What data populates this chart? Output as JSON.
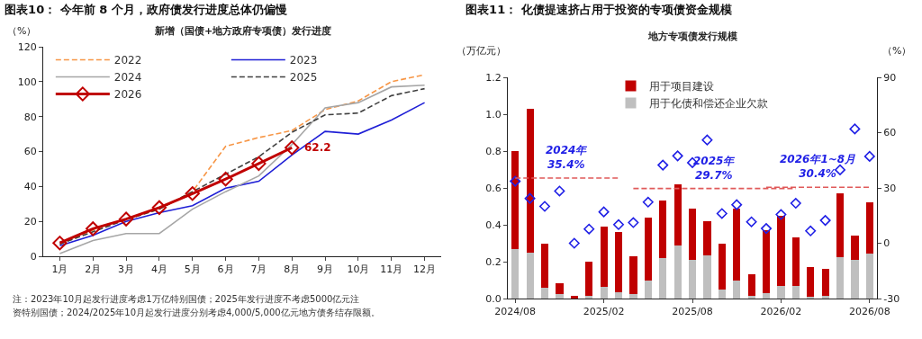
{
  "chart_data": [
    {
      "type": "line",
      "title": "图表10： 今年前 8 个月，政府债发行进度总体仍偏慢",
      "subtitle": "新增（国债+地方政府专项债）发行进度",
      "ylabel": "（%）",
      "categories": [
        "1月",
        "2月",
        "3月",
        "4月",
        "5月",
        "6月",
        "7月",
        "8月",
        "9月",
        "10月",
        "11月",
        "12月"
      ],
      "series": [
        {
          "name": "2022",
          "color": "#f79646",
          "line_style": "dashed",
          "values": [
            7,
            15,
            21,
            27,
            37,
            63,
            68,
            72,
            84,
            89,
            100,
            104
          ]
        },
        {
          "name": "2023",
          "color": "#1f1fd6",
          "line_style": "solid",
          "values": [
            6,
            12,
            20,
            25,
            29,
            39,
            43,
            58,
            71.5,
            70,
            78,
            88
          ]
        },
        {
          "name": "2024",
          "color": "#a6a6a6",
          "line_style": "solid",
          "values": [
            1.5,
            9,
            13,
            13,
            27,
            37,
            46,
            64,
            85,
            88,
            97,
            98
          ]
        },
        {
          "name": "2025",
          "color": "#404040",
          "line_style": "dashed",
          "values": [
            7,
            14,
            21,
            27,
            37,
            47,
            57,
            71,
            81,
            82,
            92,
            96
          ]
        },
        {
          "name": "2026",
          "color": "#c00000",
          "line_style": "solid",
          "marker": "diamond",
          "values": [
            7.6,
            15.8,
            21.3,
            27.9,
            35.9,
            44.2,
            53.1,
            62.2,
            null,
            null,
            null,
            null
          ]
        }
      ],
      "ylim": [
        0,
        120
      ],
      "yticks": [
        0,
        20,
        40,
        60,
        80,
        100,
        120
      ],
      "legend": "top left",
      "annotations": [
        {
          "text": "62.2",
          "x": "8月",
          "y": 62.2
        },
        "注：2023年10月起发行进度考虑1万亿特别国债；2025年发行进度不考虑5000亿元注",
        "资特别国债；2024/2025年10月起发行进度分别考虑4,000/5,000亿元地方债务结存限额。"
      ]
    },
    {
      "type": "bar",
      "stacked": true,
      "title": "图表11： 化债提速挤占用于投资的专项债资金规模",
      "subtitle": "地方专项债发行规模",
      "ylabel": "（万亿元）",
      "y2label": "（%）",
      "categories": [
        "2024/08",
        null,
        null,
        null,
        null,
        null,
        "2025/02",
        null,
        null,
        null,
        null,
        null,
        "2025/08",
        null,
        null,
        null,
        null,
        null,
        "2026/02",
        null,
        null,
        null,
        null,
        null,
        "2026/08"
      ],
      "series": [
        {
          "name": "用于化债和偿还企业欠款",
          "color": "#bfbfbf",
          "values": [
            0.27,
            0.25,
            0.06,
            0.025,
            null,
            0.015,
            0.065,
            0.035,
            0.025,
            0.1,
            0.22,
            0.29,
            0.21,
            0.235,
            0.05,
            0.1,
            0.015,
            0.03,
            0.07,
            0.07,
            0.01,
            0.015,
            0.225,
            0.21,
            0.245
          ]
        },
        {
          "name": "用于项目建设",
          "color": "#c00000",
          "values": [
            0.53,
            0.78,
            0.24,
            0.06,
            0.015,
            0.185,
            0.325,
            0.325,
            0.205,
            0.34,
            0.31,
            0.33,
            0.28,
            0.185,
            0.25,
            0.39,
            0.115,
            0.34,
            0.38,
            0.26,
            0.16,
            0.145,
            0.345,
            0.13,
            0.275
          ]
        },
        {
          "type": "scatter",
          "axis": "y2",
          "color": "#1f1fe6",
          "marker": "diamond",
          "values": [
            33.6,
            24.3,
            20,
            28.3,
            0,
            7.7,
            17,
            10.1,
            11.2,
            22.3,
            42.4,
            47.4,
            43.7,
            56,
            16.1,
            20.9,
            11.6,
            8,
            15.6,
            21.7,
            6.7,
            12.4,
            39.8,
            62,
            47.1
          ]
        },
        {
          "type": "line",
          "axis": "y2",
          "name": "2024年\n35.4%",
          "color": "#e05a5a",
          "line_style": "dashed",
          "values": [
            35.4,
            35.4,
            35.4,
            35.4,
            35.4,
            35.4,
            35.4,
            35.4,
            null,
            null,
            null,
            null,
            null,
            null,
            null,
            null,
            null,
            null,
            null,
            null,
            null,
            null,
            null,
            null,
            null
          ]
        },
        {
          "type": "line",
          "axis": "y2",
          "name": "2025年\n29.7%",
          "color": "#e05a5a",
          "line_style": "dashed",
          "values": [
            null,
            null,
            null,
            null,
            null,
            null,
            null,
            null,
            29.7,
            29.7,
            29.7,
            29.7,
            29.7,
            29.7,
            29.7,
            29.7,
            29.7,
            29.7,
            29.7,
            29.7,
            null,
            null,
            null,
            null,
            null
          ]
        },
        {
          "type": "line",
          "axis": "y2",
          "name": "2026年1~8月\n30.4%",
          "color": "#e05a5a",
          "line_style": "dashed",
          "values": [
            null,
            null,
            null,
            null,
            null,
            null,
            null,
            null,
            null,
            null,
            null,
            null,
            null,
            null,
            null,
            null,
            null,
            30.4,
            30.4,
            30.4,
            30.4,
            30.4,
            30.4,
            30.4,
            30.4
          ]
        }
      ],
      "ylim": [
        0,
        1.2
      ],
      "yticks": [
        {
          "value": 0,
          "label": "0.0"
        },
        0.2,
        0.4,
        0.6,
        0.8,
        {
          "value": 1,
          "label": "1.0"
        },
        1.2
      ],
      "y2lim": [
        -30,
        90
      ],
      "y2ticks": [
        -30,
        0,
        30,
        60,
        90
      ],
      "legend": "top"
    }
  ]
}
